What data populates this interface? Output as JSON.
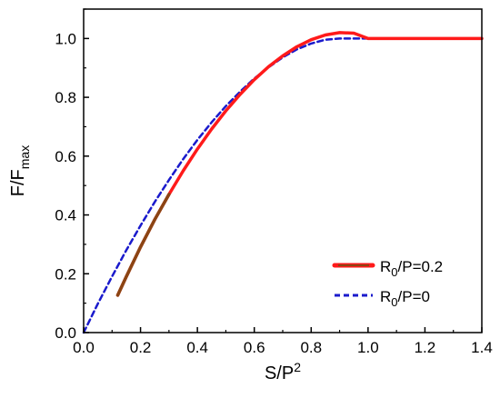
{
  "chart_data": {
    "type": "line",
    "xlabel": {
      "base": "S/P",
      "sup": "2"
    },
    "ylabel": {
      "base": "F/F",
      "sub": "max"
    },
    "xlim": [
      0.0,
      1.4
    ],
    "ylim": [
      0.0,
      1.1
    ],
    "xticks": [
      "0.0",
      "0.2",
      "0.4",
      "0.6",
      "0.8",
      "1.0",
      "1.2",
      "1.4"
    ],
    "yticks": [
      "0.0",
      "0.2",
      "0.4",
      "0.6",
      "0.8",
      "1.0"
    ],
    "grid": false,
    "legend_position": "bottom-right",
    "series": [
      {
        "name": {
          "base": "R",
          "sub": "0",
          "rest": "/P=0.2"
        },
        "color": "#ff1a1a",
        "style": "solid",
        "points": [
          [
            0.12,
            0.127
          ],
          [
            0.15,
            0.19
          ],
          [
            0.2,
            0.291
          ],
          [
            0.25,
            0.384
          ],
          [
            0.3,
            0.47
          ],
          [
            0.35,
            0.55
          ],
          [
            0.4,
            0.624
          ],
          [
            0.45,
            0.692
          ],
          [
            0.5,
            0.754
          ],
          [
            0.55,
            0.81
          ],
          [
            0.6,
            0.86
          ],
          [
            0.65,
            0.904
          ],
          [
            0.7,
            0.941
          ],
          [
            0.75,
            0.972
          ],
          [
            0.8,
            0.996
          ],
          [
            0.85,
            1.012
          ],
          [
            0.9,
            1.02
          ],
          [
            0.95,
            1.018
          ],
          [
            1.0,
            1.0
          ],
          [
            1.1,
            1.0
          ],
          [
            1.2,
            1.0
          ],
          [
            1.3,
            1.0
          ],
          [
            1.4,
            1.0
          ]
        ]
      },
      {
        "name": {
          "base": "R",
          "sub": "0",
          "rest": "/P=0"
        },
        "color": "#1a1acc",
        "style": "dashed",
        "points": [
          [
            0.0,
            0.0
          ],
          [
            0.05,
            0.098
          ],
          [
            0.1,
            0.191
          ],
          [
            0.15,
            0.28
          ],
          [
            0.2,
            0.364
          ],
          [
            0.25,
            0.444
          ],
          [
            0.3,
            0.519
          ],
          [
            0.35,
            0.59
          ],
          [
            0.4,
            0.655
          ],
          [
            0.45,
            0.715
          ],
          [
            0.5,
            0.77
          ],
          [
            0.55,
            0.819
          ],
          [
            0.6,
            0.864
          ],
          [
            0.65,
            0.902
          ],
          [
            0.7,
            0.936
          ],
          [
            0.75,
            0.963
          ],
          [
            0.8,
            0.983
          ],
          [
            0.85,
            0.996
          ],
          [
            0.9,
            1.0
          ],
          [
            0.95,
            1.0
          ],
          [
            1.0,
            1.0
          ]
        ]
      }
    ],
    "highlight_segment": {
      "color": "#8b4513",
      "x_range": [
        0.12,
        0.28
      ]
    }
  }
}
